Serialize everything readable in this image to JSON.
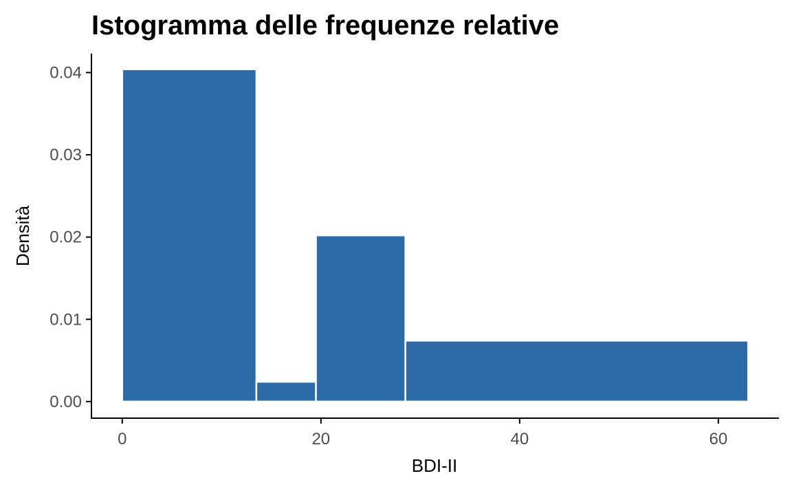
{
  "chart_data": {
    "type": "bar",
    "title": "Istogramma delle frequenze relative",
    "xlabel": "BDI-II",
    "ylabel": "Densità",
    "xlim": [
      -3.1,
      66.1
    ],
    "ylim": [
      -0.00202,
      0.0423
    ],
    "x_ticks": [
      0,
      20,
      40,
      60
    ],
    "x_tick_labels": [
      "0",
      "20",
      "40",
      "60"
    ],
    "y_ticks": [
      0,
      0.01,
      0.02,
      0.03,
      0.04
    ],
    "y_tick_labels": [
      "0.00",
      "0.01",
      "0.02",
      "0.03",
      "0.04"
    ],
    "bins": [
      {
        "start": 0,
        "end": 13.5,
        "density": 0.0404
      },
      {
        "start": 13.5,
        "end": 19.5,
        "density": 0.0024
      },
      {
        "start": 19.5,
        "end": 28.5,
        "density": 0.0202
      },
      {
        "start": 28.5,
        "end": 63,
        "density": 0.0074
      }
    ],
    "bar_color": "#2e6aa8",
    "grid": false,
    "legend": "none"
  }
}
